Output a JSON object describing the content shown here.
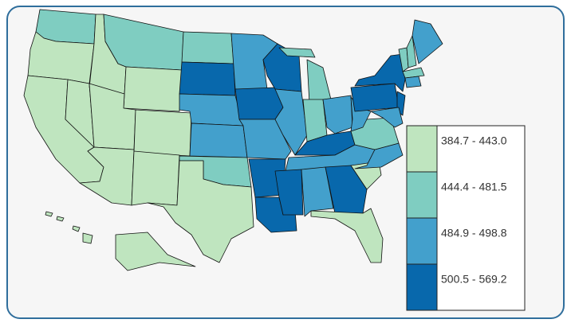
{
  "legend": {
    "items": [
      {
        "label": "384.7 - 443.0",
        "color": "#bfe5bf"
      },
      {
        "label": "444.4 - 481.5",
        "color": "#7fcdc1"
      },
      {
        "label": "484.9 - 498.8",
        "color": "#43a0cc"
      },
      {
        "label": "500.5 - 569.2",
        "color": "#0868ac"
      }
    ]
  }
}
